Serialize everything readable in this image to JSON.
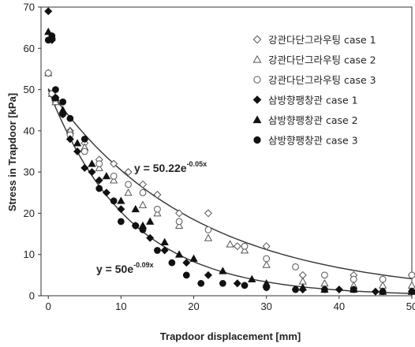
{
  "chart_data": {
    "type": "scatter",
    "xlabel": "Trapdoor displacement [mm]",
    "ylabel": "Stress in Trapdoor [kPa]",
    "xlim": [
      -1,
      50
    ],
    "ylim": [
      0,
      70
    ],
    "xticks": [
      0,
      10,
      20,
      30,
      40,
      50
    ],
    "yticks": [
      0,
      10,
      20,
      30,
      40,
      50,
      60,
      70
    ],
    "grid": false,
    "legend": "top-right",
    "series": [
      {
        "name": "강관다단그라우팅 case 1",
        "marker": "diamond-open",
        "x": [
          0,
          0.5,
          1,
          2,
          3,
          5,
          7,
          9,
          11,
          13,
          15,
          18,
          22,
          26,
          30,
          35,
          42,
          50
        ],
        "y": [
          54,
          49,
          47,
          44,
          40,
          37,
          33,
          32,
          30,
          27,
          24.5,
          20,
          20,
          12,
          12,
          5,
          5,
          5
        ]
      },
      {
        "name": "강관다단그라우팅 case 2",
        "marker": "triangle-open",
        "x": [
          0,
          0.5,
          1,
          2,
          3,
          5,
          7,
          9,
          11,
          13,
          15,
          18,
          22,
          25,
          27,
          30,
          35,
          38,
          42,
          46,
          50
        ],
        "y": [
          54,
          49,
          47,
          45,
          40,
          36,
          31,
          28,
          25,
          22,
          20,
          17,
          14,
          12.5,
          11,
          7.5,
          3.5,
          3,
          2.5,
          2.5,
          2.5
        ]
      },
      {
        "name": "강관다단그라우팅 case 3",
        "marker": "circle-open",
        "x": [
          0,
          0.5,
          1,
          2,
          3,
          5,
          7,
          9,
          11,
          13,
          15,
          18,
          22,
          27,
          30,
          34,
          38,
          42,
          46,
          50
        ],
        "y": [
          54,
          49,
          48,
          44,
          39,
          35,
          32,
          29,
          27,
          25,
          21,
          18,
          16,
          12,
          9,
          7,
          5,
          4,
          4,
          5
        ]
      },
      {
        "name": "삼방향팽창관 case 1",
        "marker": "diamond-filled",
        "x": [
          0,
          0.5,
          1,
          2,
          3,
          4,
          5,
          6,
          7,
          8,
          10,
          12,
          14,
          16,
          19,
          22,
          26,
          30,
          35,
          40,
          45,
          50
        ],
        "y": [
          69,
          62,
          48,
          44,
          38,
          35,
          31,
          30,
          28,
          25,
          21,
          17,
          14,
          11,
          8,
          5,
          3,
          2,
          1.5,
          1.5,
          1,
          1
        ]
      },
      {
        "name": "삼방향팽창관 case 2",
        "marker": "triangle-filled",
        "x": [
          0,
          0.5,
          1,
          2,
          4,
          6,
          8,
          10,
          12,
          13,
          14,
          16,
          18,
          20,
          24,
          28,
          30,
          35,
          38,
          42,
          46,
          50
        ],
        "y": [
          64,
          63,
          48,
          45,
          37,
          32,
          29,
          23,
          21,
          17,
          18,
          13,
          10,
          9,
          6,
          4,
          3,
          2,
          1.5,
          1.5,
          1,
          1
        ]
      },
      {
        "name": "삼방향팽창관 case 3",
        "marker": "circle-filled",
        "x": [
          0,
          0.5,
          1,
          2,
          3,
          5,
          7,
          9,
          10,
          12,
          13,
          15,
          17,
          19,
          21,
          24,
          27,
          30,
          34,
          38,
          42,
          46,
          50
        ],
        "y": [
          62,
          63,
          50,
          47,
          43,
          38,
          26,
          23,
          18,
          17,
          16,
          11,
          8,
          5,
          3,
          3,
          2.5,
          2,
          1.5,
          1.5,
          1.5,
          1,
          1
        ]
      }
    ],
    "fits": [
      {
        "a": 50.22,
        "b": -0.05,
        "label_base": "y = 50.22e",
        "label_exp": "-0.05x"
      },
      {
        "a": 50,
        "b": -0.09,
        "label_base": "y = 50e",
        "label_exp": "-0.09x"
      }
    ]
  }
}
